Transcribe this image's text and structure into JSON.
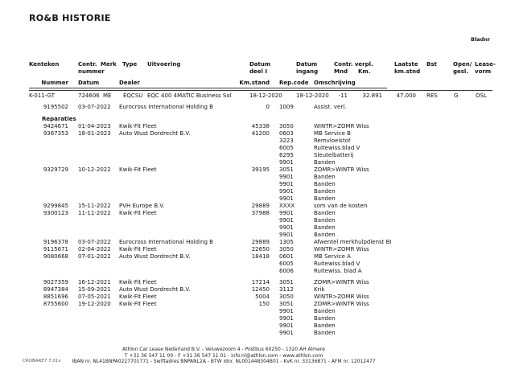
{
  "title": "RO&B HISTORIE",
  "page_label": "Bladnr",
  "table": {
    "headers_row1": {
      "kenteken": "Kenteken",
      "contr_nummer": "Contr.\nnummer",
      "merk": "Merk",
      "type": "Type",
      "uitvoering": "Uitvoering",
      "datum_deel_i": "Datum\ndeel I",
      "datum_ingang": "Datum\ningang",
      "contr_verpl": "Contr. verpl.",
      "mnd": "Mnd",
      "km": "Km.",
      "laatste_kmstnd": "Laatste\nkm.stnd",
      "bst": "Bst",
      "open_gesl": "Open/\ngesl.",
      "leasevorm": "Lease-\nvorm"
    },
    "headers_row2": {
      "nummer": "Nummer",
      "datum": "Datum",
      "dealer": "Dealer",
      "kmstand": "Km.stand",
      "repcode": "Rep.code",
      "omschrijving": "Omschrijving"
    },
    "contract": {
      "kenteken": "K-011-GT",
      "contr_nummer": "724606",
      "merk": "ME",
      "type": "EQCSU",
      "uitvoering": "EQC 400 4MATIC Business Sol",
      "datum_deel_i": "18-12-2020",
      "datum_ingang": "18-12-2020",
      "mnd": "-11",
      "km": "32.891",
      "laatste_kmstnd": "47.000",
      "bst": "RES",
      "open_gesl": "G",
      "leasevorm": "OSL"
    },
    "assistentie": {
      "nummer": "9195502",
      "datum": "03-07-2022",
      "dealer": "Eurocross International Holding B",
      "kmstand": "0",
      "repcode": "1009",
      "omschrijving": "Assist. verl."
    },
    "section_label": "Reparaties",
    "reparaties": [
      {
        "nummer": "9424671",
        "datum": "01-04-2023",
        "dealer": "Kwik-Fit Fleet",
        "kmstand": "45338",
        "repcode": "3050",
        "omschrijving": "WINTR>ZOMR Wiss"
      },
      {
        "nummer": "9367353",
        "datum": "18-01-2023",
        "dealer": "Auto Wust Dordrecht B.V.",
        "kmstand": "41200",
        "repcode": "0603",
        "omschrijving": "MB Service B"
      },
      {
        "repcode": "3223",
        "omschrijving": "Remvloeistof"
      },
      {
        "repcode": "6005",
        "omschrijving": "Ruitewiss.blad V"
      },
      {
        "repcode": "6295",
        "omschrijving": "Sleutelbatterij"
      },
      {
        "repcode": "9901",
        "omschrijving": "Banden"
      },
      {
        "nummer": "9329729",
        "datum": "10-12-2022",
        "dealer": "Kwik-Fit Fleet",
        "kmstand": "39195",
        "repcode": "3051",
        "omschrijving": "ZOMR>WINTR Wiss"
      },
      {
        "repcode": "9901",
        "omschrijving": "Banden"
      },
      {
        "repcode": "9901",
        "omschrijving": "Banden"
      },
      {
        "repcode": "9901",
        "omschrijving": "Banden"
      },
      {
        "repcode": "9901",
        "omschrijving": "Banden"
      },
      {
        "nummer": "9299845",
        "datum": "15-11-2022",
        "dealer": "PVH Europe B.V.",
        "kmstand": "29889",
        "repcode": "XXXX",
        "omschrijving": "som van de kosten"
      },
      {
        "nummer": "9300123",
        "datum": "11-11-2022",
        "dealer": "Kwik-Fit Fleet",
        "kmstand": "37988",
        "repcode": "9901",
        "omschrijving": "Banden"
      },
      {
        "repcode": "9901",
        "omschrijving": "Banden"
      },
      {
        "repcode": "9901",
        "omschrijving": "Banden"
      },
      {
        "repcode": "9901",
        "omschrijving": "Banden"
      },
      {
        "nummer": "9196378",
        "datum": "03-07-2022",
        "dealer": "Eurocross International Holding B",
        "kmstand": "29889",
        "repcode": "1305",
        "omschrijving": "Afwentel merkhulpdienst BI"
      },
      {
        "nummer": "9115671",
        "datum": "02-04-2022",
        "dealer": "Kwik-Fit Fleet",
        "kmstand": "22650",
        "repcode": "3050",
        "omschrijving": "WINTR>ZOMR Wiss"
      },
      {
        "nummer": "9080668",
        "datum": "07-01-2022",
        "dealer": "Auto Wust Dordrecht B.V.",
        "kmstand": "18418",
        "repcode": "0601",
        "omschrijving": "MB Service A"
      },
      {
        "repcode": "6005",
        "omschrijving": "Ruitewiss.blad V"
      },
      {
        "repcode": "6006",
        "omschrijving": "Ruitewiss. blad A"
      },
      {
        "nummer": "9027359",
        "datum": "16-12-2021",
        "dealer": "Kwik-Fit Fleet",
        "kmstand": "17214",
        "repcode": "3051",
        "omschrijving": "ZOMR>WINTR Wiss"
      },
      {
        "nummer": "8947384",
        "datum": "15-09-2021",
        "dealer": "Auto Wust Dordrecht B.V.",
        "kmstand": "12450",
        "repcode": "3112",
        "omschrijving": "Krik"
      },
      {
        "nummer": "8851696",
        "datum": "07-05-2021",
        "dealer": "Kwik-Fit Fleet",
        "kmstand": "5004",
        "repcode": "3050",
        "omschrijving": "WINTR>ZOMR Wiss"
      },
      {
        "nummer": "8755600",
        "datum": "19-12-2020",
        "dealer": "Kwik-Fit Fleet",
        "kmstand": "150",
        "repcode": "3051",
        "omschrijving": "ZOMR>WINTR Wiss"
      },
      {
        "repcode": "9901",
        "omschrijving": "Banden"
      },
      {
        "repcode": "9901",
        "omschrijving": "Banden"
      },
      {
        "repcode": "9901",
        "omschrijving": "Banden"
      },
      {
        "repcode": "9901",
        "omschrijving": "Banden"
      }
    ]
  },
  "footer": {
    "line1": "Athlon Car Lease Nederland B.V. - Veluwezoom 4 - Postbus 60250 - 1320 AH Almere",
    "line2": "T +31 36 547 11 00 - F +31 36 547 11 01 - info.nl@athlon.com - www.athlon.com",
    "line3": "IBAN nr. NL41BNPA0227701771 - Swiftadres BNPANL2A - BTW idnr. NL001448304B01 - KvK nr. 33136871 - AFM nr. 12012477",
    "version": "CROBARE7 7.01v"
  }
}
